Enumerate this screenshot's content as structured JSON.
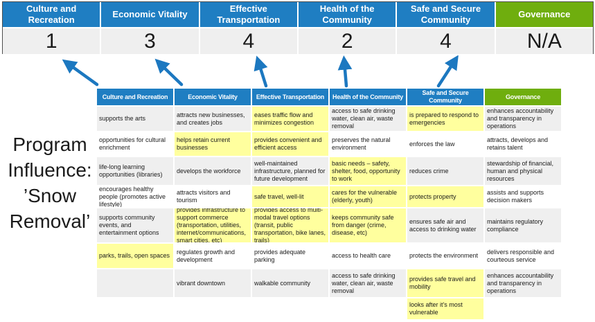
{
  "colors": {
    "blue": "#1F7EC2",
    "green": "#6FAE0E",
    "score_bg": "#EFEFEF",
    "row_alt": "#EFEFEF",
    "row_base": "#FFFFFF",
    "highlight": "#FFFF9E",
    "arrow": "#1C78C0"
  },
  "program_title": {
    "text": "Program\nInfluence:\n’Snow\nRemoval’"
  },
  "summary": {
    "columns": [
      {
        "label": "Culture and Recreation",
        "score": "1",
        "header_color": "#1F7EC2"
      },
      {
        "label": "Economic Vitality",
        "score": "3",
        "header_color": "#1F7EC2"
      },
      {
        "label": "Effective Transportation",
        "score": "4",
        "header_color": "#1F7EC2"
      },
      {
        "label": "Health of the Community",
        "score": "2",
        "header_color": "#1F7EC2"
      },
      {
        "label": "Safe and Secure Community",
        "score": "4",
        "header_color": "#1F7EC2"
      },
      {
        "label": "Governance",
        "score": "N/A",
        "header_color": "#6FAE0E"
      }
    ]
  },
  "matrix": {
    "headers": [
      {
        "label": "Culture and Recreation",
        "color": "#1F7EC2"
      },
      {
        "label": "Economic Vitality",
        "color": "#1F7EC2"
      },
      {
        "label": "Effective Transportation",
        "color": "#1F7EC2"
      },
      {
        "label": "Health of the Community",
        "color": "#1F7EC2"
      },
      {
        "label": "Safe and Secure Community",
        "color": "#1F7EC2"
      },
      {
        "label": "Governance",
        "color": "#6FAE0E"
      }
    ],
    "rows": [
      [
        {
          "text": "supports the arts",
          "highlight": false
        },
        {
          "text": "attracts new businesses, and creates jobs",
          "highlight": false
        },
        {
          "text": "eases traffic flow and minimizes congestion",
          "highlight": true
        },
        {
          "text": "access to safe drinking water, clean air, waste removal",
          "highlight": false
        },
        {
          "text": "is prepared to respond to emergencies",
          "highlight": true
        },
        {
          "text": "enhances accountability and transparency in operations",
          "highlight": false
        }
      ],
      [
        {
          "text": "opportunities for cultural enrichment",
          "highlight": false
        },
        {
          "text": "helps retain current businesses",
          "highlight": true
        },
        {
          "text": "provides convenient and efficient access",
          "highlight": true
        },
        {
          "text": "preserves the natural environment",
          "highlight": false
        },
        {
          "text": "enforces the law",
          "highlight": false
        },
        {
          "text": "attracts, develops and retains talent",
          "highlight": false
        }
      ],
      [
        {
          "text": "life-long learning opportunities (libraries)",
          "highlight": false
        },
        {
          "text": "develops the workforce",
          "highlight": false
        },
        {
          "text": "well-maintained infrastructure, planned for future development",
          "highlight": false
        },
        {
          "text": "basic needs – safety, shelter, food, opportunity to work",
          "highlight": true
        },
        {
          "text": "reduces crime",
          "highlight": false
        },
        {
          "text": "stewardship of financial, human and physical resources",
          "highlight": false
        }
      ],
      [
        {
          "text": "encourages healthy people (promotes active lifestyle)",
          "highlight": false
        },
        {
          "text": "attracts visitors and tourism",
          "highlight": false
        },
        {
          "text": "safe travel, well-lit",
          "highlight": true
        },
        {
          "text": "cares for the vulnerable (elderly, youth)",
          "highlight": true
        },
        {
          "text": "protects property",
          "highlight": true
        },
        {
          "text": "assists and supports decision makers",
          "highlight": false
        }
      ],
      [
        {
          "text": "supports community events, and entertainment options",
          "highlight": false
        },
        {
          "text": "provides infrastructure to support commerce (transportation, utilities, internet/communications, smart cities, etc)",
          "highlight": true
        },
        {
          "text": "provides access to multi-modal travel options (transit, public transportation, bike lanes, trails)",
          "highlight": true
        },
        {
          "text": "keeps community safe from danger (crime, disease, etc)",
          "highlight": true
        },
        {
          "text": "ensures safe air and access to drinking water",
          "highlight": false
        },
        {
          "text": "maintains regulatory compliance",
          "highlight": false
        }
      ],
      [
        {
          "text": "parks, trails, open spaces",
          "highlight": true
        },
        {
          "text": "regulates growth and development",
          "highlight": false
        },
        {
          "text": "provides adequate parking",
          "highlight": false
        },
        {
          "text": "access to health care",
          "highlight": false
        },
        {
          "text": "protects the environment",
          "highlight": false
        },
        {
          "text": "delivers responsible and courteous service",
          "highlight": false
        }
      ],
      [
        {
          "text": "",
          "highlight": false
        },
        {
          "text": "vibrant downtown",
          "highlight": false
        },
        {
          "text": "walkable community",
          "highlight": false
        },
        {
          "text": "access to safe drinking water, clean air, waste removal",
          "highlight": false
        },
        {
          "text": "provides safe travel and mobility",
          "highlight": true
        },
        {
          "text": "enhances accountability and transparency in operations",
          "highlight": false
        }
      ],
      [
        {
          "text": "",
          "highlight": false
        },
        {
          "text": "",
          "highlight": false
        },
        {
          "text": "",
          "highlight": false
        },
        {
          "text": "",
          "highlight": false
        },
        {
          "text": "looks after it's most vulnerable",
          "highlight": true
        },
        {
          "text": "",
          "highlight": false
        }
      ]
    ]
  }
}
